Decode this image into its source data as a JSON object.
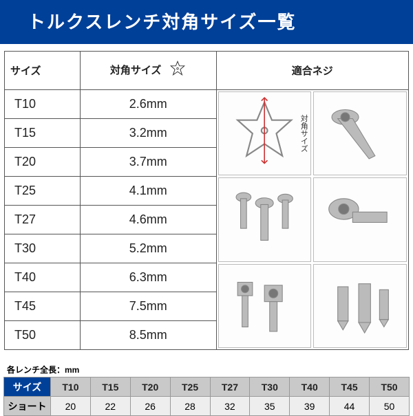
{
  "title": "トルクスレンチ対角サイズ一覧",
  "colors": {
    "brand_blue": "#004098",
    "header_gray": "#c9c9c9",
    "cell_gray": "#eeeeee",
    "border": "#555555",
    "text": "#222222"
  },
  "main_table": {
    "headers": {
      "size": "サイズ",
      "diag": "対角サイズ",
      "fit": "適合ネジ"
    },
    "diag_label": "対角サイズ",
    "rows": [
      {
        "size": "T10",
        "diag": "2.6mm"
      },
      {
        "size": "T15",
        "diag": "3.2mm"
      },
      {
        "size": "T20",
        "diag": "3.7mm"
      },
      {
        "size": "T25",
        "diag": "4.1mm"
      },
      {
        "size": "T27",
        "diag": "4.6mm"
      },
      {
        "size": "T30",
        "diag": "5.2mm"
      },
      {
        "size": "T40",
        "diag": "6.3mm"
      },
      {
        "size": "T45",
        "diag": "7.5mm"
      },
      {
        "size": "T50",
        "diag": "8.5mm"
      }
    ],
    "fit_images_count": 6
  },
  "length_table": {
    "caption": "各レンチ全長：mm",
    "size_header": "サイズ",
    "short_header": "ショート",
    "columns": [
      "T10",
      "T15",
      "T20",
      "T25",
      "T27",
      "T30",
      "T40",
      "T45",
      "T50"
    ],
    "short": [
      "20",
      "22",
      "26",
      "28",
      "32",
      "35",
      "39",
      "44",
      "50"
    ]
  }
}
